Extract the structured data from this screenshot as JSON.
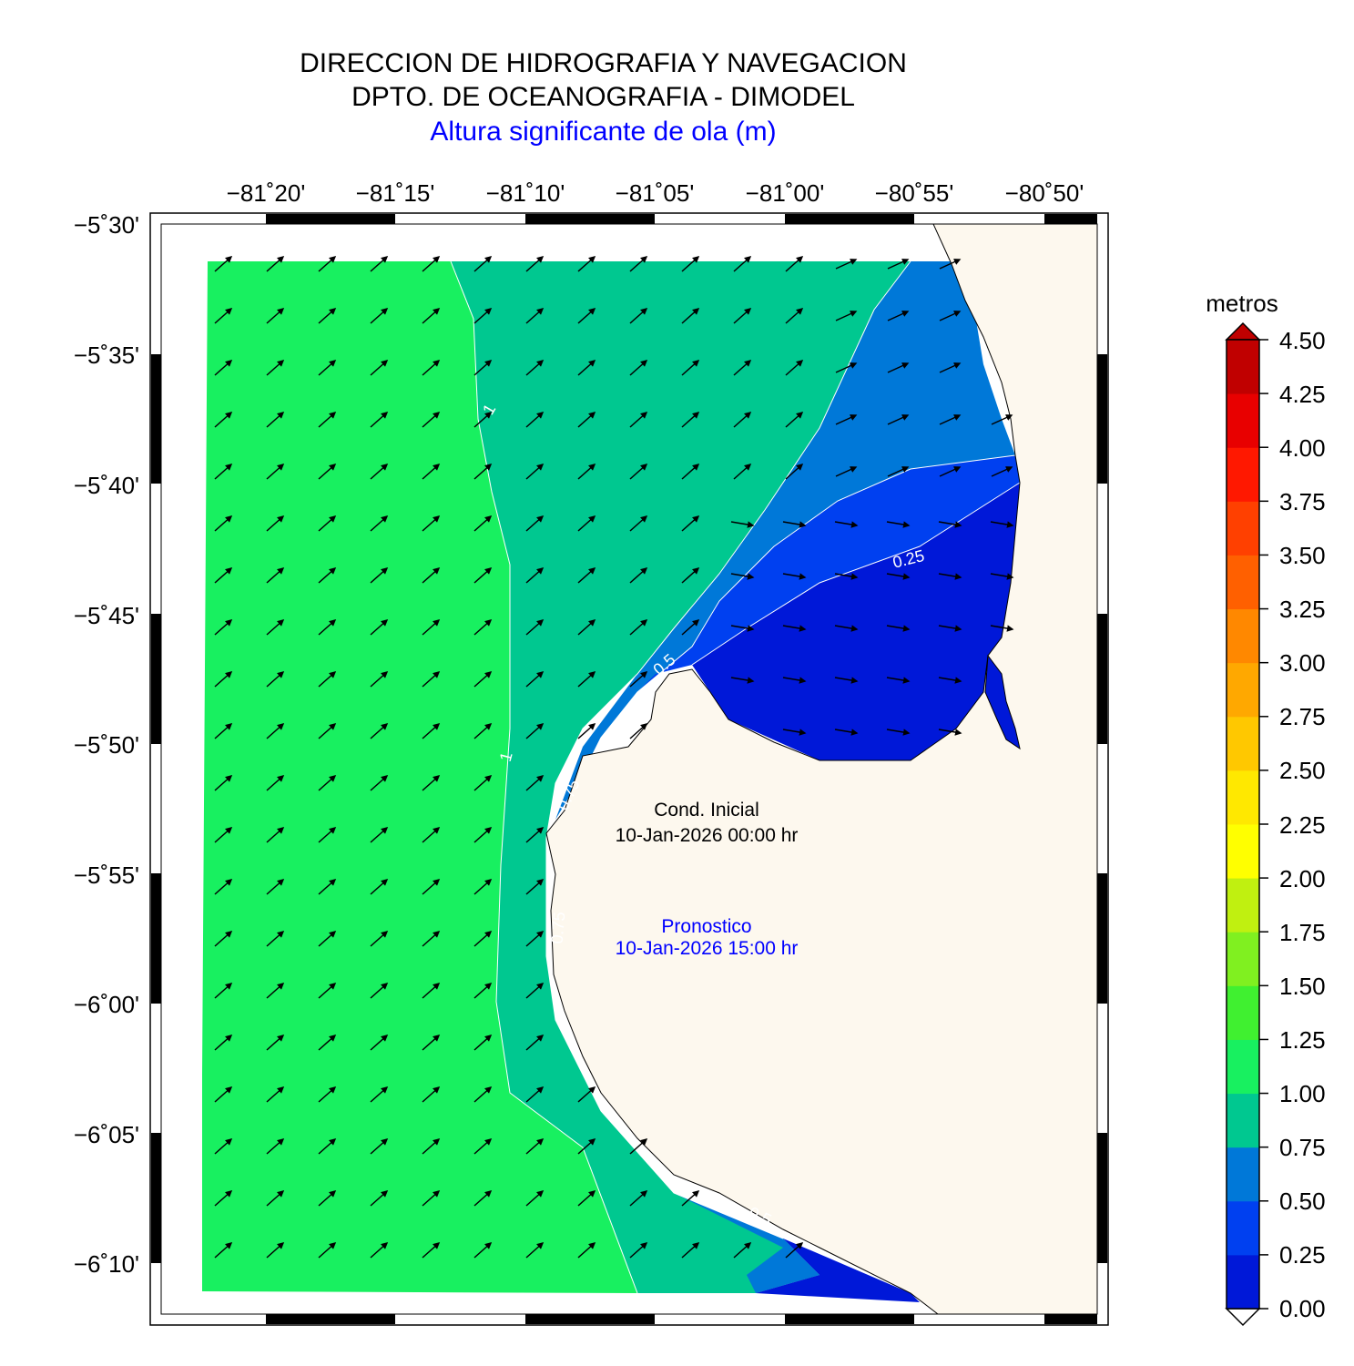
{
  "header": {
    "line1": "DIRECCION DE HIDROGRAFIA Y NAVEGACION",
    "line2": "DPTO. DE OCEANOGRAFIA - DIMODEL",
    "line3": "Altura significante de ola (m)"
  },
  "map": {
    "lon_ticks": [
      "−81˚20'",
      "−81˚15'",
      "−81˚10'",
      "−81˚05'",
      "−81˚00'",
      "−80˚55'",
      "−80˚50'"
    ],
    "lat_ticks": [
      "−5˚30'",
      "−5˚35'",
      "−5˚40'",
      "−5˚45'",
      "−5˚50'",
      "−5˚55'",
      "−6˚00'",
      "−6˚05'",
      "−6˚10'"
    ],
    "contour_labels": [
      "0.25",
      "0.5",
      "0.75",
      "1",
      "1",
      "0.75",
      "0.5"
    ],
    "init_label": "Cond. Inicial",
    "init_time": "10-Jan-2026 00:00 hr",
    "forecast_label": "Pronostico",
    "forecast_time": "10-Jan-2026 15:00 hr",
    "land_color": "#fdf8ee"
  },
  "colorbar": {
    "title": "metros",
    "ticks": [
      "4.50",
      "4.25",
      "4.00",
      "3.75",
      "3.50",
      "3.25",
      "3.00",
      "2.75",
      "2.50",
      "2.25",
      "2.00",
      "1.75",
      "1.50",
      "1.25",
      "1.00",
      "0.75",
      "0.50",
      "0.25",
      "0.00"
    ],
    "colors": [
      "#0018d8",
      "#0040f0",
      "#0078d8",
      "#00c890",
      "#18f060",
      "#40f030",
      "#80f020",
      "#c0f010",
      "#ffff00",
      "#ffe800",
      "#ffc800",
      "#ffa800",
      "#ff8800",
      "#ff6000",
      "#ff4000",
      "#ff1800",
      "#e80000",
      "#c00000"
    ]
  }
}
